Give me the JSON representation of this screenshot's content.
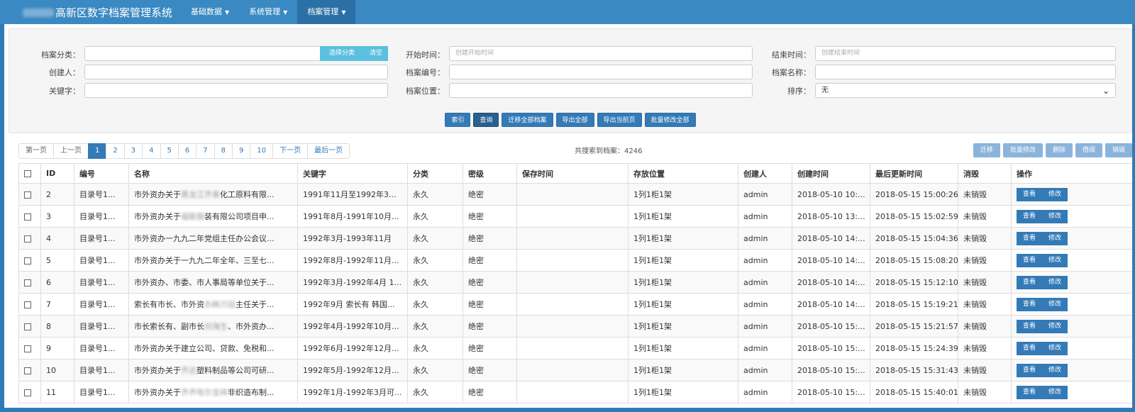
{
  "header": {
    "brand_blur": "",
    "brand": "高新区数字档案管理系统",
    "menus": [
      {
        "label": "基础数据"
      },
      {
        "label": "系统管理"
      },
      {
        "label": "档案管理"
      }
    ]
  },
  "search": {
    "category_label": "档案分类：",
    "select_category": "选择分类",
    "clear": "清空",
    "start_label": "开始时间：",
    "start_placeholder": "创建开始时间",
    "end_label": "结束时间：",
    "end_placeholder": "创建结束时间",
    "creator_label": "创建人：",
    "number_label": "档案编号：",
    "name_label": "档案名称：",
    "keyword_label": "关键字：",
    "location_label": "档案位置：",
    "sort_label": "排序：",
    "sort_value": "无",
    "actions": [
      "索引",
      "查询",
      "迁移全部档案",
      "导出全部",
      "导出当前页",
      "批量修改全部"
    ]
  },
  "pager": {
    "first": "第一页",
    "prev": "上一页",
    "pages": [
      "1",
      "2",
      "3",
      "4",
      "5",
      "6",
      "7",
      "8",
      "9",
      "10"
    ],
    "next": "下一页",
    "last": "最后一页",
    "total": "共搜索到档案：4246"
  },
  "tools": [
    "迁移",
    "批量修改",
    "删除",
    "借阅",
    "销毁"
  ],
  "table": {
    "headers": [
      "ID",
      "编号",
      "名称",
      "关键字",
      "分类",
      "密级",
      "保存时间",
      "存放位置",
      "创建人",
      "创建时间",
      "最后更新时间",
      "消毁",
      "操作"
    ],
    "view": "查看",
    "edit": "修改",
    "rows": [
      {
        "id": "2",
        "code": "目录号1...",
        "name_a": "市外资办关于",
        "name_b": "黑龙江齐泰",
        "name_c": "化工原料有限...",
        "keyword": "1991年11月至1992年3...",
        "cat": "永久",
        "secret": "绝密",
        "keep": "",
        "loc": "1列1柜1架",
        "creator": "admin",
        "created": "2018-05-10 10:...",
        "updated": "2018-05-15 15:00:26",
        "destroyed": "未销毁"
      },
      {
        "id": "3",
        "code": "目录号1...",
        "name_a": "市外资办关于",
        "name_b": "福联服",
        "name_c": "装有限公司项目申...",
        "keyword": "1991年8月-1991年10月...",
        "cat": "永久",
        "secret": "绝密",
        "keep": "",
        "loc": "1列1柜1架",
        "creator": "admin",
        "created": "2018-05-10 13:...",
        "updated": "2018-05-15 15:02:59",
        "destroyed": "未销毁"
      },
      {
        "id": "4",
        "code": "目录号1...",
        "name_a": "市外资办一九九二年党组主任办公会议...",
        "name_b": "",
        "name_c": "",
        "keyword": "1992年3月-1993年11月",
        "cat": "永久",
        "secret": "绝密",
        "keep": "",
        "loc": "1列1柜1架",
        "creator": "admin",
        "created": "2018-05-10 14:...",
        "updated": "2018-05-15 15:04:36",
        "destroyed": "未销毁"
      },
      {
        "id": "5",
        "code": "目录号1...",
        "name_a": "市外资办关于一九九二年全年、三至七...",
        "name_b": "",
        "name_c": "",
        "keyword": "1992年8月-1992年11月...",
        "cat": "永久",
        "secret": "绝密",
        "keep": "",
        "loc": "1列1柜1架",
        "creator": "admin",
        "created": "2018-05-10 14:...",
        "updated": "2018-05-15 15:08:20",
        "destroyed": "未销毁"
      },
      {
        "id": "6",
        "code": "目录号1...",
        "name_a": "市外资办、市委、市人事局等单位关于...",
        "name_b": "",
        "name_c": "",
        "keyword": "1992年3月-1992年4月 1...",
        "cat": "永久",
        "secret": "绝密",
        "keep": "",
        "loc": "1列1柜1架",
        "creator": "admin",
        "created": "2018-05-10 14:...",
        "updated": "2018-05-15 15:12:10",
        "destroyed": "未销毁"
      },
      {
        "id": "7",
        "code": "目录号1...",
        "name_a": "索长有市长、市外资",
        "name_b": "办韩万田",
        "name_c": "主任关于...",
        "keyword": "1992年9月 索长有 韩国...",
        "cat": "永久",
        "secret": "绝密",
        "keep": "",
        "loc": "1列1柜1架",
        "creator": "admin",
        "created": "2018-05-10 14:...",
        "updated": "2018-05-15 15:19:21",
        "destroyed": "未销毁"
      },
      {
        "id": "8",
        "code": "目录号1...",
        "name_a": "市长索长有、副市长",
        "name_b": "刘海生",
        "name_c": "、市外资办...",
        "keyword": "1992年4月-1992年10月...",
        "cat": "永久",
        "secret": "绝密",
        "keep": "",
        "loc": "1列1柜1架",
        "creator": "admin",
        "created": "2018-05-10 15:...",
        "updated": "2018-05-15 15:21:57",
        "destroyed": "未销毁"
      },
      {
        "id": "9",
        "code": "目录号1...",
        "name_a": "市外资办关于建立公司、贷款、免税和...",
        "name_b": "",
        "name_c": "",
        "keyword": "1992年6月-1992年12月...",
        "cat": "永久",
        "secret": "绝密",
        "keep": "",
        "loc": "1列1柜1架",
        "creator": "admin",
        "created": "2018-05-10 15:...",
        "updated": "2018-05-15 15:24:39",
        "destroyed": "未销毁"
      },
      {
        "id": "10",
        "code": "目录号1...",
        "name_a": "市外资办关于",
        "name_b": "齐达",
        "name_c": "塑料制品等公司可研...",
        "keyword": "1992年5月-1992年12月...",
        "cat": "永久",
        "secret": "绝密",
        "keep": "",
        "loc": "1列1柜1架",
        "creator": "admin",
        "created": "2018-05-10 15:...",
        "updated": "2018-05-15 15:31:43",
        "destroyed": "未销毁"
      },
      {
        "id": "11",
        "code": "目录号1...",
        "name_a": "市外资办关于",
        "name_b": "齐齐哈尔龙祥",
        "name_c": "非织造布制...",
        "keyword": "1992年1月-1992年3月可...",
        "cat": "永久",
        "secret": "绝密",
        "keep": "",
        "loc": "1列1柜1架",
        "creator": "admin",
        "created": "2018-05-10 15:...",
        "updated": "2018-05-15 15:40:01",
        "destroyed": "未销毁"
      }
    ]
  }
}
